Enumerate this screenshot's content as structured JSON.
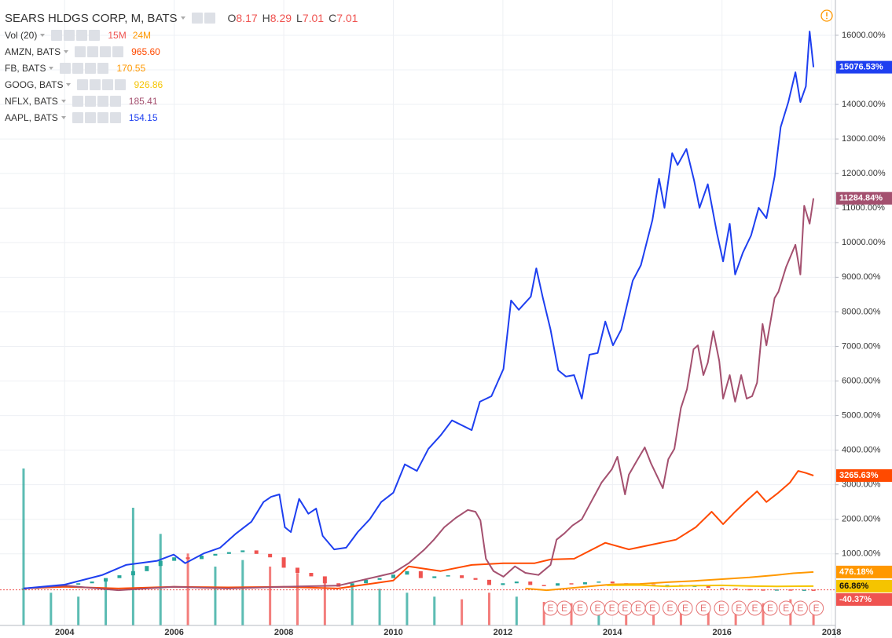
{
  "chart_data": {
    "type": "line",
    "title": "SEARS HLDGS CORP, M, BATS",
    "ohlc": [
      {
        "label": "O",
        "value": 8.17
      },
      {
        "label": "H",
        "value": 8.29
      },
      {
        "label": "L",
        "value": 7.01
      },
      {
        "label": "C",
        "value": 7.01
      }
    ],
    "volume": {
      "name": "Vol (20)",
      "labels": [
        "15M",
        "24M"
      ],
      "label_colors": [
        "#ef5350",
        "#ff9800"
      ],
      "x": [
        2003.25,
        2003.75,
        2004.25,
        2004.75,
        2005.25,
        2005.75,
        2006.25,
        2006.75,
        2007.25,
        2007.75,
        2008.25,
        2008.75,
        2009.25,
        2009.75,
        2010.25,
        2010.75,
        2011.25,
        2011.75,
        2012.25,
        2012.75,
        2013.25,
        2013.75,
        2014.25,
        2014.75,
        2015.25,
        2015.75,
        2016.25,
        2016.75,
        2017.25,
        2017.67
      ],
      "values": [
        120,
        25,
        22,
        35,
        90,
        70,
        55,
        45,
        50,
        45,
        40,
        35,
        30,
        28,
        25,
        22,
        20,
        25,
        22,
        18,
        17,
        16,
        18,
        15,
        14,
        13,
        15,
        17,
        20,
        15
      ]
    },
    "main": {
      "up_color": "#26a69a",
      "down_color": "#ef5350",
      "end_label": "-40.37%",
      "x": [
        2003.25,
        2003.5,
        2003.75,
        2004.0,
        2004.25,
        2004.5,
        2004.75,
        2005.0,
        2005.25,
        2005.5,
        2005.75,
        2006.0,
        2006.25,
        2006.5,
        2006.75,
        2007.0,
        2007.25,
        2007.5,
        2007.75,
        2008.0,
        2008.25,
        2008.5,
        2008.75,
        2009.0,
        2009.25,
        2009.5,
        2009.75,
        2010.0,
        2010.25,
        2010.5,
        2010.75,
        2011.0,
        2011.25,
        2011.5,
        2011.75,
        2012.0,
        2012.25,
        2012.5,
        2012.75,
        2013.0,
        2013.25,
        2013.5,
        2013.75,
        2014.0,
        2014.25,
        2014.5,
        2014.75,
        2015.0,
        2015.25,
        2015.5,
        2015.75,
        2016.0,
        2016.25,
        2016.5,
        2016.75,
        2017.0,
        2017.25,
        2017.5,
        2017.67
      ],
      "values": [
        0,
        20,
        60,
        110,
        150,
        200,
        300,
        380,
        500,
        650,
        800,
        900,
        850,
        950,
        1000,
        1050,
        1100,
        1000,
        900,
        600,
        450,
        350,
        150,
        50,
        150,
        250,
        300,
        400,
        500,
        300,
        350,
        380,
        300,
        250,
        100,
        150,
        200,
        100,
        80,
        150,
        120,
        180,
        200,
        150,
        100,
        120,
        80,
        100,
        60,
        80,
        20,
        0,
        -20,
        -30,
        -35,
        -30,
        -40,
        -35,
        -40.37
      ]
    },
    "series": [
      {
        "name": "AMZN, BATS",
        "price": "965.60",
        "color": "#ff4a00",
        "end_label": "3265.63%",
        "x": [
          2003.25,
          2004.0,
          2004.98,
          2005.99,
          2006.98,
          2008.0,
          2008.99,
          2010.0,
          2010.28,
          2010.86,
          2011.43,
          2012.01,
          2012.58,
          2012.87,
          2013.3,
          2013.87,
          2014.3,
          2014.73,
          2015.16,
          2015.52,
          2015.81,
          2016.02,
          2016.24,
          2016.45,
          2016.64,
          2016.81,
          2017.03,
          2017.24,
          2017.39,
          2017.53,
          2017.67
        ],
        "values": [
          0,
          50,
          0,
          50,
          30,
          50,
          0,
          230,
          640,
          500,
          680,
          730,
          730,
          840,
          860,
          1320,
          1130,
          1270,
          1410,
          1770,
          2220,
          1860,
          2220,
          2540,
          2810,
          2500,
          2770,
          3060,
          3400,
          3340,
          3265.63
        ]
      },
      {
        "name": "FB, BATS",
        "price": "170.55",
        "color": "#ff9800",
        "end_label": "476.18%",
        "x": [
          2012.41,
          2012.8,
          2013.5,
          2014.0,
          2014.5,
          2015.0,
          2015.5,
          2016.0,
          2016.5,
          2017.0,
          2017.3,
          2017.67
        ],
        "values": [
          0,
          -50,
          50,
          120,
          130,
          180,
          220,
          270,
          320,
          390,
          440,
          476.18
        ]
      },
      {
        "name": "GOOG, BATS",
        "price": "926.86",
        "color": "#f5c400",
        "end_label": "66.86%",
        "x": [
          2013.9,
          2014.5,
          2015.0,
          2015.5,
          2016.0,
          2016.5,
          2017.0,
          2017.67
        ],
        "values": [
          90,
          100,
          60,
          80,
          90,
          70,
          60,
          66.86
        ]
      },
      {
        "name": "NFLX, BATS",
        "price": "185.41",
        "color": "#a4506f",
        "end_label": "11284.84%",
        "x": [
          2003.25,
          2004.0,
          2004.98,
          2005.99,
          2006.98,
          2008.0,
          2008.99,
          2010.0,
          2010.28,
          2010.57,
          2010.74,
          2010.93,
          2011.14,
          2011.36,
          2011.5,
          2011.59,
          2011.69,
          2011.83,
          2012.01,
          2012.22,
          2012.41,
          2012.65,
          2012.87,
          2012.98,
          2013.12,
          2013.27,
          2013.44,
          2013.61,
          2013.8,
          2013.99,
          2014.09,
          2014.23,
          2014.3,
          2014.44,
          2014.59,
          2014.7,
          2014.92,
          2015.02,
          2015.13,
          2015.25,
          2015.36,
          2015.48,
          2015.56,
          2015.66,
          2015.74,
          2015.84,
          2015.95,
          2016.02,
          2016.14,
          2016.24,
          2016.35,
          2016.45,
          2016.55,
          2016.64,
          2016.74,
          2016.81,
          2016.96,
          2017.03,
          2017.17,
          2017.34,
          2017.43,
          2017.5,
          2017.6,
          2017.67
        ],
        "values": [
          0,
          80,
          -50,
          50,
          0,
          50,
          80,
          450,
          730,
          1130,
          1410,
          1770,
          2040,
          2270,
          2220,
          1970,
          860,
          500,
          340,
          640,
          450,
          390,
          680,
          1410,
          1590,
          1820,
          2000,
          2500,
          3060,
          3450,
          3810,
          2720,
          3290,
          3680,
          4080,
          3630,
          2900,
          3740,
          4040,
          5220,
          5760,
          6920,
          7030,
          6170,
          6530,
          7440,
          6580,
          5490,
          6170,
          5400,
          6170,
          5490,
          5560,
          5950,
          7650,
          7030,
          8400,
          8580,
          9300,
          9940,
          9080,
          11070,
          10550,
          11284.84
        ]
      },
      {
        "name": "AAPL, BATS",
        "price": "154.15",
        "color": "#1e3ff0",
        "end_label": "15076.53%",
        "x": [
          2003.25,
          2004.0,
          2004.69,
          2005.12,
          2005.69,
          2005.99,
          2006.2,
          2006.55,
          2006.84,
          2007.13,
          2007.41,
          2007.63,
          2007.77,
          2007.92,
          2008.02,
          2008.13,
          2008.28,
          2008.45,
          2008.59,
          2008.71,
          2008.92,
          2009.14,
          2009.35,
          2009.57,
          2009.78,
          2010.0,
          2010.21,
          2010.43,
          2010.64,
          2010.86,
          2011.07,
          2011.43,
          2011.58,
          2011.79,
          2012.01,
          2012.15,
          2012.29,
          2012.51,
          2012.61,
          2012.73,
          2012.87,
          2013.01,
          2013.15,
          2013.3,
          2013.44,
          2013.58,
          2013.73,
          2013.87,
          2014.01,
          2014.16,
          2014.37,
          2014.52,
          2014.73,
          2014.85,
          2014.95,
          2015.09,
          2015.19,
          2015.35,
          2015.49,
          2015.59,
          2015.74,
          2015.91,
          2016.02,
          2016.14,
          2016.24,
          2016.38,
          2016.53,
          2016.67,
          2016.81,
          2016.96,
          2017.07,
          2017.21,
          2017.34,
          2017.43,
          2017.53,
          2017.6,
          2017.67
        ],
        "values": [
          0,
          110,
          390,
          680,
          800,
          980,
          730,
          1020,
          1180,
          1590,
          1930,
          2500,
          2650,
          2720,
          1770,
          1630,
          2590,
          2160,
          2310,
          1520,
          1130,
          1180,
          1630,
          2000,
          2500,
          2770,
          3590,
          3400,
          4040,
          4420,
          4860,
          4580,
          5400,
          5560,
          6350,
          8330,
          8060,
          8440,
          9260,
          8400,
          7490,
          6310,
          6130,
          6170,
          5490,
          6760,
          6810,
          7720,
          7030,
          7490,
          8900,
          9350,
          10660,
          11850,
          11010,
          12590,
          12250,
          12710,
          11800,
          11010,
          11690,
          10260,
          9460,
          10550,
          9080,
          9710,
          10210,
          11010,
          10710,
          11910,
          13340,
          14070,
          14930,
          14070,
          14520,
          16110,
          15076.53
        ]
      }
    ],
    "earnings": {
      "label": "E",
      "x": [
        2012.87,
        2013.12,
        2013.41,
        2013.73,
        2013.99,
        2014.23,
        2014.47,
        2014.73,
        2015.05,
        2015.33,
        2015.66,
        2015.99,
        2016.31,
        2016.6,
        2016.88,
        2017.17,
        2017.43,
        2017.72
      ]
    },
    "xlim": [
      2002.82,
      2018.07
    ],
    "xticks": [
      2004,
      2006,
      2008,
      2010,
      2012,
      2014,
      2016,
      2018
    ],
    "ylim": [
      -1070,
      17020
    ],
    "yticks": [
      {
        "value": 1000,
        "label": "1000.00%"
      },
      {
        "value": 2000,
        "label": "2000.00%"
      },
      {
        "value": 3000,
        "label": "3000.00%"
      },
      {
        "value": 4000,
        "label": "4000.00%"
      },
      {
        "value": 5000,
        "label": "5000.00%"
      },
      {
        "value": 6000,
        "label": "6000.00%"
      },
      {
        "value": 7000,
        "label": "7000.00%"
      },
      {
        "value": 8000,
        "label": "8000.00%"
      },
      {
        "value": 9000,
        "label": "9000.00%"
      },
      {
        "value": 10000,
        "label": "10000.00%"
      },
      {
        "value": 11000,
        "label": "11000.00%"
      },
      {
        "value": 12000,
        "label": "12000.00%"
      },
      {
        "value": 13000,
        "label": "13000.00%"
      },
      {
        "value": 14000,
        "label": "14000.00%"
      },
      {
        "value": 15000,
        "label": "15000.00%"
      },
      {
        "value": 16000,
        "label": "16000.00%"
      }
    ],
    "grid": true
  }
}
